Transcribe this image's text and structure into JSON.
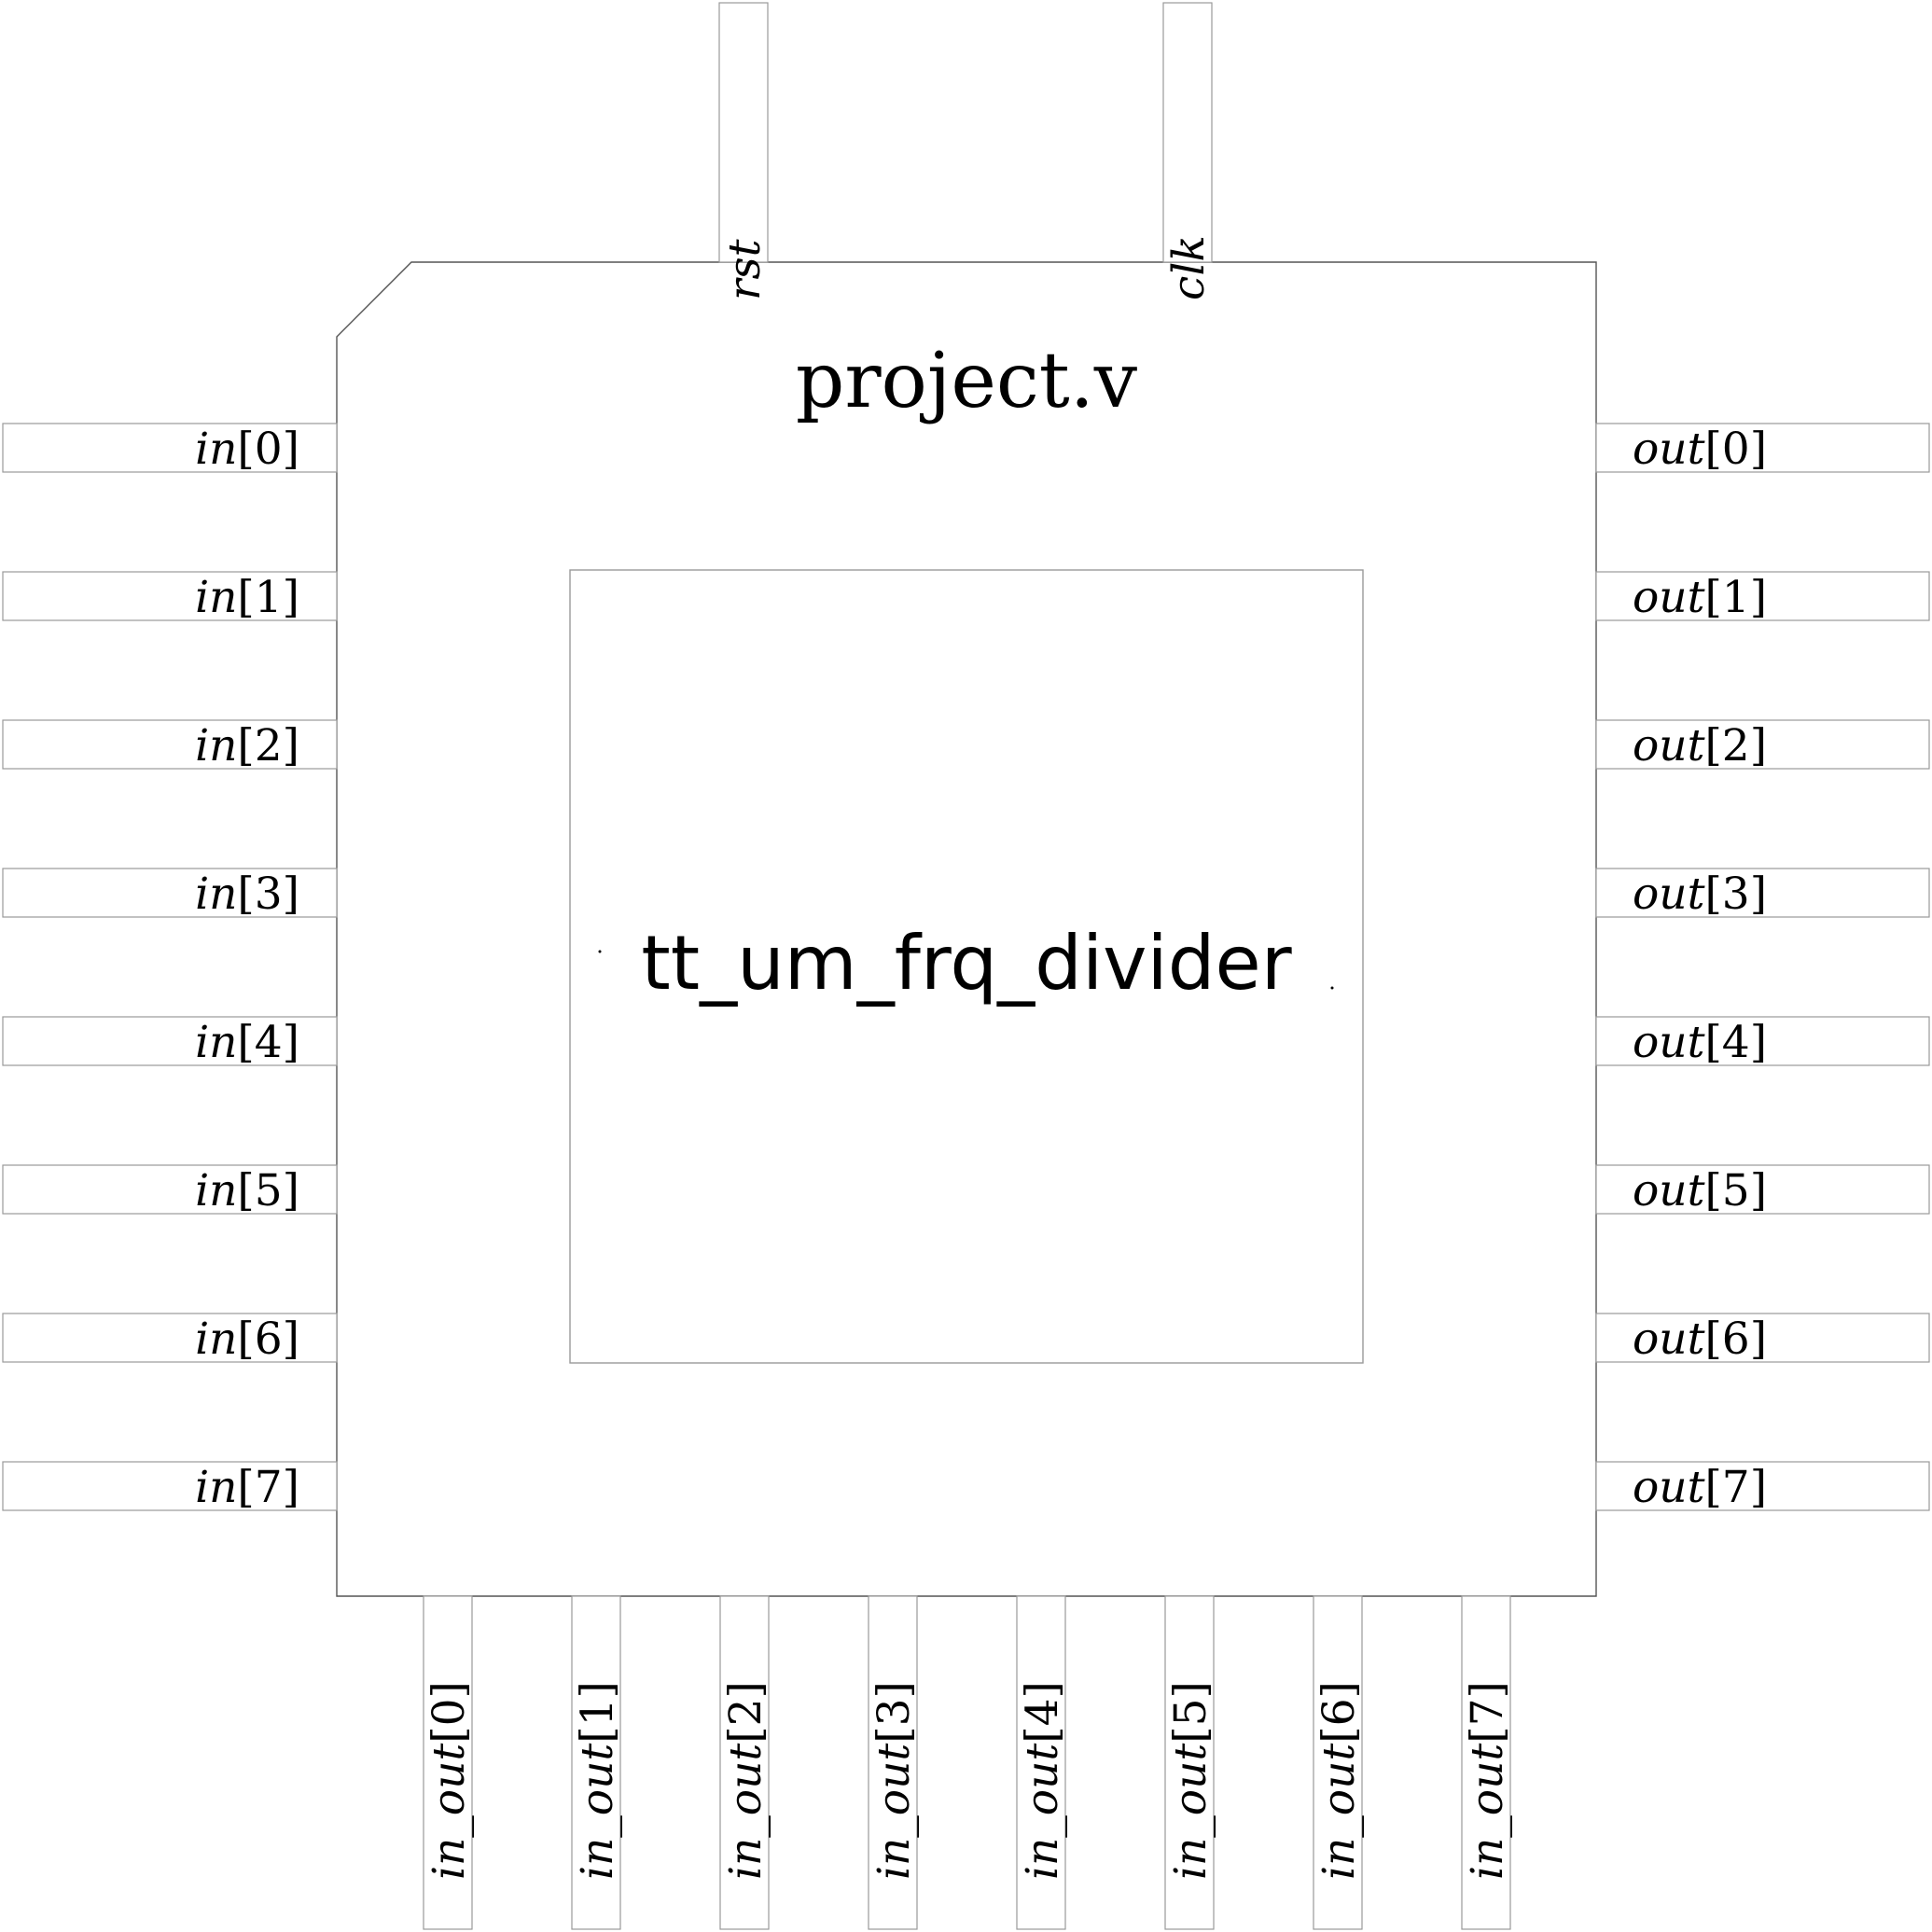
{
  "chip": {
    "title": "project.v",
    "module": "tt_um_frq_divider"
  },
  "pins": {
    "top": [
      {
        "name": "rst",
        "index": ""
      },
      {
        "name": "clk",
        "index": ""
      }
    ],
    "left": [
      {
        "name": "in",
        "index": "[0]"
      },
      {
        "name": "in",
        "index": "[1]"
      },
      {
        "name": "in",
        "index": "[2]"
      },
      {
        "name": "in",
        "index": "[3]"
      },
      {
        "name": "in",
        "index": "[4]"
      },
      {
        "name": "in",
        "index": "[5]"
      },
      {
        "name": "in",
        "index": "[6]"
      },
      {
        "name": "in",
        "index": "[7]"
      }
    ],
    "right": [
      {
        "name": "out",
        "index": "[0]"
      },
      {
        "name": "out",
        "index": "[1]"
      },
      {
        "name": "out",
        "index": "[2]"
      },
      {
        "name": "out",
        "index": "[3]"
      },
      {
        "name": "out",
        "index": "[4]"
      },
      {
        "name": "out",
        "index": "[5]"
      },
      {
        "name": "out",
        "index": "[6]"
      },
      {
        "name": "out",
        "index": "[7]"
      }
    ],
    "bottom": [
      {
        "name": "in_out",
        "index": "[0]"
      },
      {
        "name": "in_out",
        "index": "[1]"
      },
      {
        "name": "in_out",
        "index": "[2]"
      },
      {
        "name": "in_out",
        "index": "[3]"
      },
      {
        "name": "in_out",
        "index": "[4]"
      },
      {
        "name": "in_out",
        "index": "[5]"
      },
      {
        "name": "in_out",
        "index": "[6]"
      },
      {
        "name": "in_out",
        "index": "[7]"
      }
    ]
  }
}
